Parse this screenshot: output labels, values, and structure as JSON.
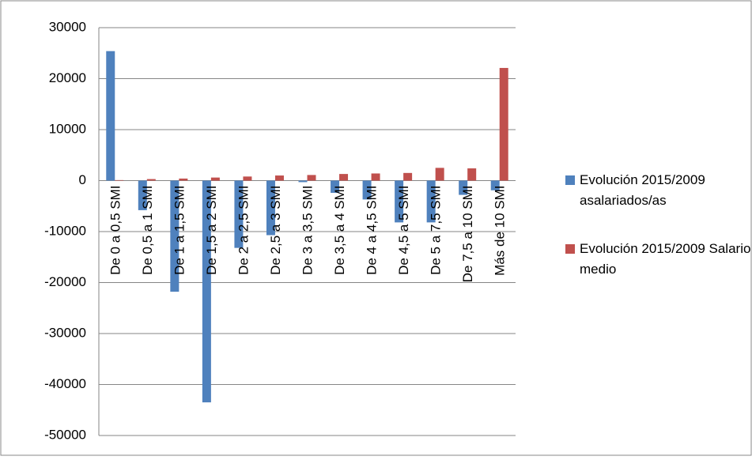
{
  "chart_data": {
    "type": "bar",
    "categories": [
      "De 0 a 0,5 SMI",
      "De 0,5 a 1 SMI",
      "De 1 a 1,5 SMI",
      "De 1,5 a 2 SMI",
      "De 2 a 2,5 SMI",
      "De 2,5 a 3 SMI",
      "De 3 a 3,5 SMI",
      "De 3,5 a 4 SMI",
      "De 4 a 4,5 SMI",
      "De 4,5 a 5 SMI",
      "De 5 a 7,5 SMI",
      "De 7,5 a 10 SMI",
      "Más de 10 SMI"
    ],
    "series": [
      {
        "name": "Evolución 2015/2009 asalariados/as",
        "color": "#4f81bd",
        "values": [
          25400,
          -5800,
          -21800,
          -43500,
          -13200,
          -10700,
          -300,
          -2400,
          -3700,
          -8200,
          -8200,
          -2800,
          -1900
        ]
      },
      {
        "name": "Evolución 2015/2009 Salario  medio",
        "color": "#c0504d",
        "values": [
          100,
          300,
          400,
          600,
          800,
          1000,
          1100,
          1300,
          1400,
          1500,
          2500,
          2400,
          22100
        ]
      }
    ],
    "ylim": [
      -50000,
      30000
    ],
    "yticks": [
      -50000,
      -40000,
      -30000,
      -20000,
      -10000,
      0,
      10000,
      20000,
      30000
    ],
    "grid": true,
    "legend": "right"
  }
}
